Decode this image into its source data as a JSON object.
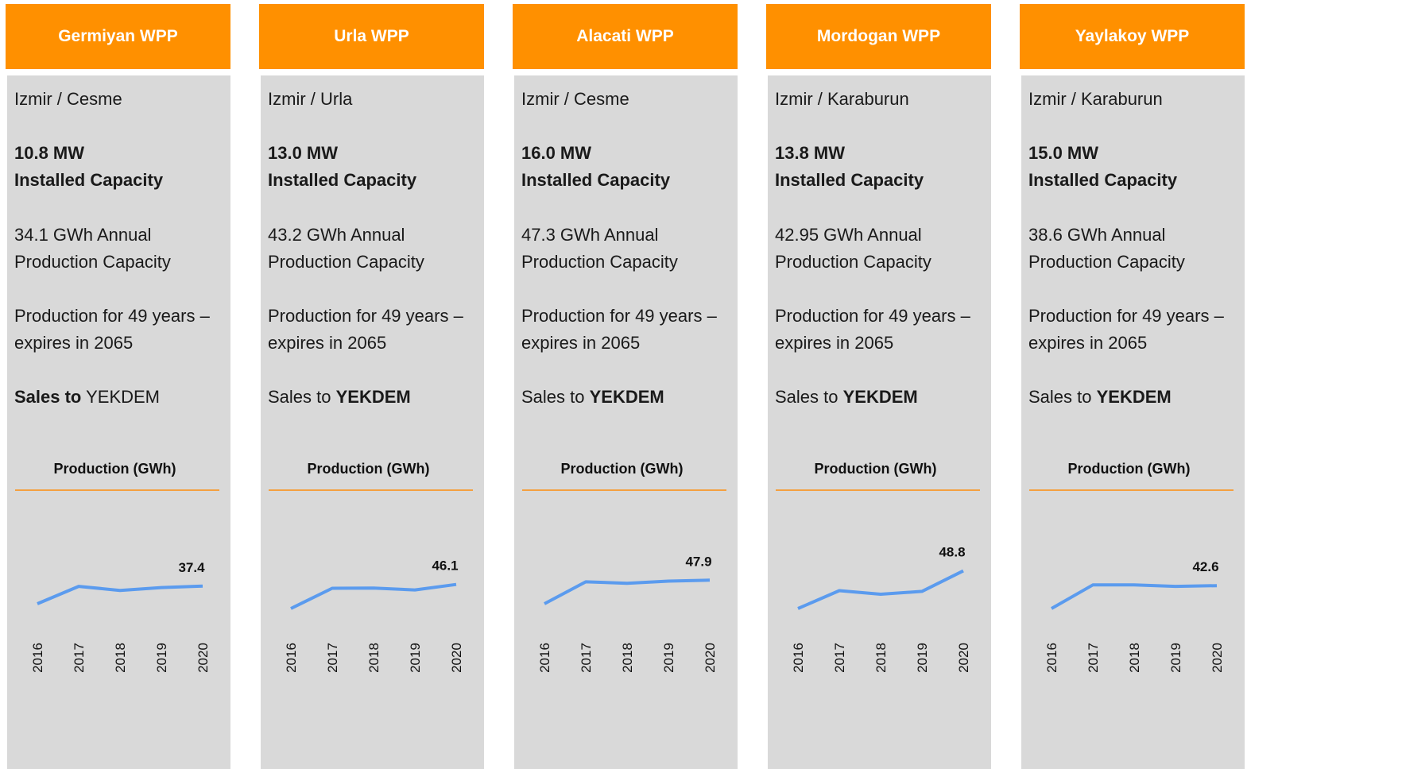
{
  "cards": [
    {
      "title": "Germiyan WPP",
      "location": "Izmir / Cesme",
      "capacity": "10.8 MW",
      "capacity_label": "Installed Capacity",
      "annual": "34.1 GWh Annual Production Capacity",
      "term": "Production for 49 years – expires in 2065",
      "sales_prefix": "Sales to",
      "sales_target": "YEKDEM",
      "sales_bold": "prefix",
      "chart": {
        "type": "line",
        "title": "Production (GWh)",
        "categories": [
          "2016",
          "2017",
          "2018",
          "2019",
          "2020"
        ],
        "values": [
          30.0,
          37.3,
          35.6,
          36.8,
          37.4
        ],
        "color": "#5b9bee",
        "ylim": [
          20,
          60
        ]
      }
    },
    {
      "title": "Urla WPP",
      "location": "Izmir / Urla",
      "capacity": "13.0 MW",
      "capacity_label": "Installed Capacity",
      "annual": "43.2 GWh Annual Production Capacity",
      "term": "Production for 49 years – expires in 2065",
      "sales_prefix": "Sales to",
      "sales_target": "YEKDEM",
      "sales_bold": "target",
      "chart": {
        "type": "line",
        "title": "Production (GWh)",
        "categories": [
          "2016",
          "2017",
          "2018",
          "2019",
          "2020"
        ],
        "values": [
          36.0,
          44.5,
          44.6,
          43.8,
          46.1
        ],
        "color": "#5b9bee",
        "ylim": [
          28,
          68
        ]
      }
    },
    {
      "title": "Alacati WPP",
      "location": "Izmir / Cesme",
      "capacity": "16.0 MW",
      "capacity_label": "Installed Capacity",
      "annual": "47.3 GWh Annual Production Capacity",
      "term": "Production for 49 years – expires in 2065",
      "sales_prefix": "Sales to",
      "sales_target": "YEKDEM",
      "sales_bold": "target",
      "chart": {
        "type": "line",
        "title": "Production (GWh)",
        "categories": [
          "2016",
          "2017",
          "2018",
          "2019",
          "2020"
        ],
        "values": [
          38.0,
          47.2,
          46.6,
          47.5,
          47.9
        ],
        "color": "#5b9bee",
        "ylim": [
          28,
          68
        ]
      }
    },
    {
      "title": "Mordogan WPP",
      "location": "Izmir / Karaburun",
      "capacity": "13.8 MW",
      "capacity_label": "Installed Capacity",
      "annual": "42.95 GWh Annual Production Capacity",
      "term": "Production for 49 years – expires in 2065",
      "sales_prefix": "Sales to",
      "sales_target": "YEKDEM",
      "sales_bold": "target",
      "chart": {
        "type": "line",
        "title": "Production (GWh)",
        "categories": [
          "2016",
          "2017",
          "2018",
          "2019",
          "2020"
        ],
        "values": [
          33.0,
          40.5,
          39.0,
          40.2,
          48.8
        ],
        "color": "#5b9bee",
        "ylim": [
          25,
          65
        ]
      }
    },
    {
      "title": "Yaylakoy WPP",
      "location": "Izmir / Karaburun",
      "capacity": "15.0 MW",
      "capacity_label": "Installed Capacity",
      "annual": "38.6 GWh Annual Production Capacity",
      "term": "Production for 49 years – expires in 2065",
      "sales_prefix": "Sales to",
      "sales_target": "YEKDEM",
      "sales_bold": "target",
      "chart": {
        "type": "line",
        "title": "Production (GWh)",
        "categories": [
          "2016",
          "2017",
          "2018",
          "2019",
          "2020"
        ],
        "values": [
          33.0,
          42.9,
          42.9,
          42.3,
          42.6
        ],
        "color": "#5b9bee",
        "ylim": [
          25,
          65
        ]
      }
    }
  ]
}
